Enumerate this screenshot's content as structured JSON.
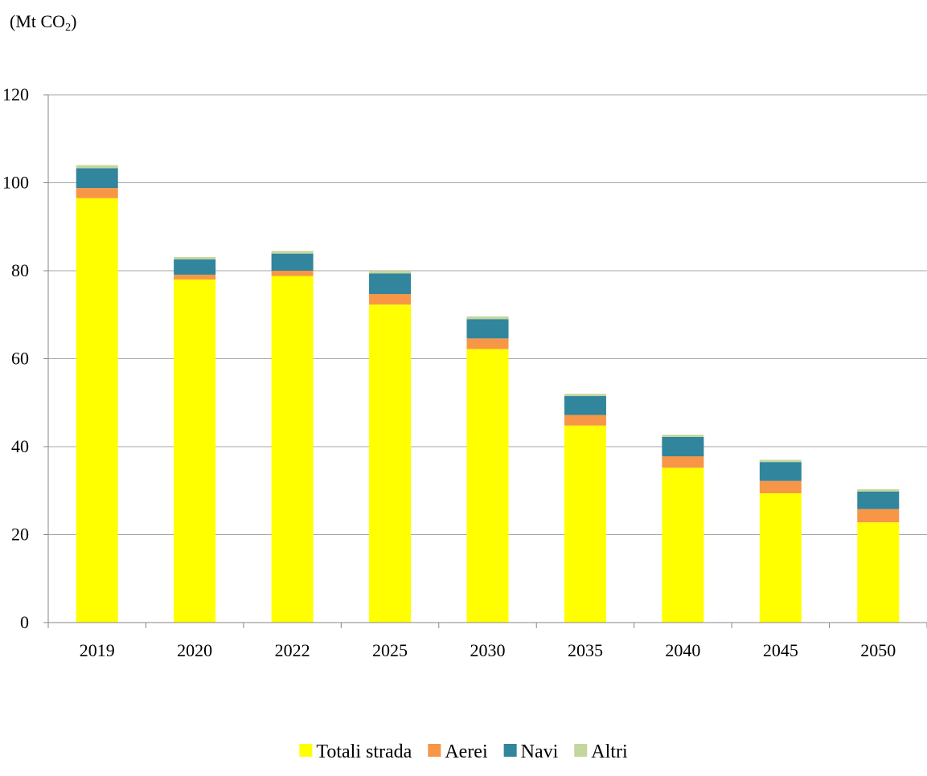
{
  "chart_data": {
    "type": "bar",
    "stacked": true,
    "ylabel_prefix": "(Mt CO",
    "ylabel_subscript": "2",
    "ylabel_suffix": ")",
    "ylim": [
      0,
      120
    ],
    "yticks": [
      0,
      20,
      40,
      60,
      80,
      100,
      120
    ],
    "grid": true,
    "legend_position": "bottom",
    "categories": [
      "2019",
      "2020",
      "2022",
      "2025",
      "2030",
      "2035",
      "2040",
      "2045",
      "2050"
    ],
    "series": [
      {
        "name": "Totali strada",
        "color": "#ffff00",
        "values": [
          96.5,
          78.0,
          78.8,
          72.3,
          62.2,
          44.8,
          35.2,
          29.4,
          22.8
        ]
      },
      {
        "name": "Aerei",
        "color": "#f79646",
        "values": [
          2.3,
          1.1,
          1.2,
          2.4,
          2.4,
          2.4,
          2.6,
          2.8,
          3.0
        ]
      },
      {
        "name": "Navi",
        "color": "#31859c",
        "values": [
          4.5,
          3.5,
          3.9,
          4.7,
          4.4,
          4.3,
          4.4,
          4.3,
          4.0
        ]
      },
      {
        "name": "Altri",
        "color": "#c3d69b",
        "values": [
          0.7,
          0.5,
          0.6,
          0.6,
          0.6,
          0.5,
          0.5,
          0.5,
          0.5
        ]
      }
    ]
  }
}
